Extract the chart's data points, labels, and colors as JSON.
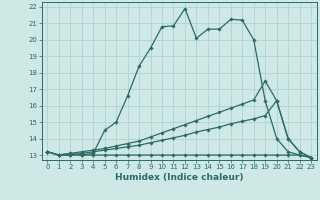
{
  "xlabel": "Humidex (Indice chaleur)",
  "bg_color": "#cde8e5",
  "grid_color": "#aacfcc",
  "line_color": "#2a6b68",
  "xlim": [
    -0.5,
    23.5
  ],
  "ylim": [
    12.7,
    22.3
  ],
  "xticks": [
    0,
    1,
    2,
    3,
    4,
    5,
    6,
    7,
    8,
    9,
    10,
    11,
    12,
    13,
    14,
    15,
    16,
    17,
    18,
    19,
    20,
    21,
    22,
    23
  ],
  "yticks": [
    13,
    14,
    15,
    16,
    17,
    18,
    19,
    20,
    21,
    22
  ],
  "series1_x": [
    0,
    1,
    2,
    3,
    4,
    5,
    6,
    7,
    8,
    9,
    10,
    11,
    12,
    13,
    14,
    15,
    16,
    17,
    18,
    19,
    20,
    21,
    22,
    23
  ],
  "series1_y": [
    13.2,
    13.0,
    13.1,
    13.0,
    13.1,
    14.5,
    15.0,
    16.6,
    18.4,
    19.5,
    20.8,
    20.85,
    21.9,
    20.1,
    20.65,
    20.65,
    21.25,
    21.2,
    20.0,
    16.3,
    14.0,
    13.2,
    13.0,
    12.85
  ],
  "series2_x": [
    0,
    1,
    2,
    3,
    4,
    5,
    6,
    7,
    8,
    9,
    10,
    11,
    12,
    13,
    14,
    15,
    16,
    17,
    18,
    19,
    20,
    21,
    22,
    23
  ],
  "series2_y": [
    13.2,
    13.0,
    13.1,
    13.2,
    13.3,
    13.4,
    13.55,
    13.7,
    13.85,
    14.1,
    14.35,
    14.6,
    14.85,
    15.1,
    15.35,
    15.6,
    15.85,
    16.1,
    16.35,
    17.5,
    16.3,
    14.0,
    13.2,
    12.85
  ],
  "series3_x": [
    0,
    1,
    2,
    3,
    4,
    5,
    6,
    7,
    8,
    9,
    10,
    11,
    12,
    13,
    14,
    15,
    16,
    17,
    18,
    19,
    20,
    21,
    22,
    23
  ],
  "series3_y": [
    13.2,
    13.0,
    13.0,
    13.1,
    13.2,
    13.3,
    13.4,
    13.5,
    13.6,
    13.75,
    13.9,
    14.05,
    14.2,
    14.4,
    14.55,
    14.7,
    14.9,
    15.05,
    15.2,
    15.4,
    16.3,
    14.0,
    13.2,
    12.85
  ],
  "series4_x": [
    0,
    1,
    2,
    3,
    4,
    5,
    6,
    7,
    8,
    9,
    10,
    11,
    12,
    13,
    14,
    15,
    16,
    17,
    18,
    19,
    20,
    21,
    22,
    23
  ],
  "series4_y": [
    13.2,
    13.0,
    13.0,
    13.0,
    13.0,
    13.0,
    13.0,
    13.0,
    13.0,
    13.0,
    13.0,
    13.0,
    13.0,
    13.0,
    13.0,
    13.0,
    13.0,
    13.0,
    13.0,
    13.0,
    13.0,
    13.0,
    13.0,
    12.85
  ],
  "marker_size": 1.8,
  "line_width": 0.9,
  "label_fontsize": 6.5,
  "tick_fontsize": 5.0
}
